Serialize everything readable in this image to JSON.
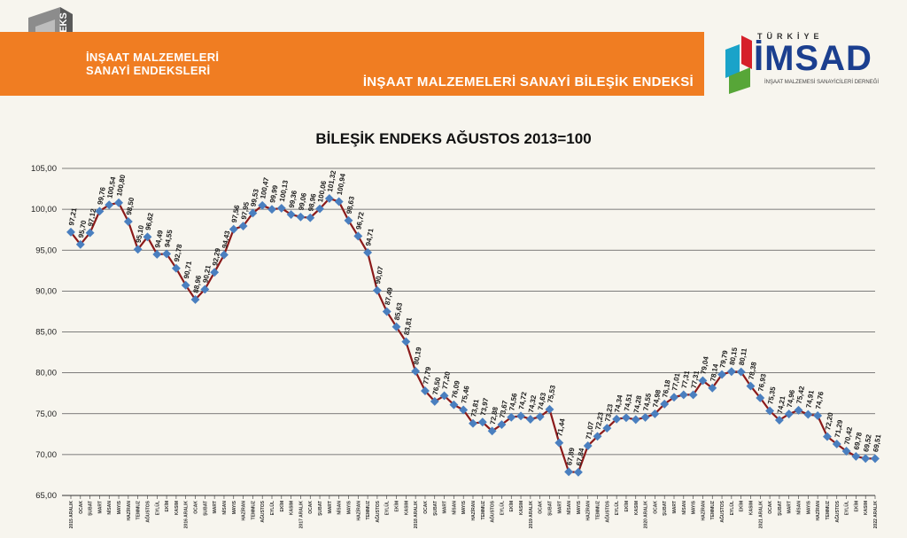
{
  "header": {
    "logo_tag": "ENDEKS",
    "title_line1": "İNŞAAT MALZEMELERİ",
    "title_line2": "SANAYİ ENDEKSLERİ",
    "subtitle": "İNŞAAT MALZEMELERİ SANAYİ BİLEŞİK ENDEKSİ"
  },
  "brand": {
    "top": "TÜRKİYE",
    "name": "İMSAD",
    "tagline": "İNŞAAT MALZEMESİ SANAYİCİLERİ DERNEĞİ",
    "colors": {
      "orange": "#f07d22",
      "navy": "#1b3f8f",
      "red": "#d6202a",
      "green": "#57a638",
      "teal": "#1aa3c9"
    }
  },
  "chart_data": {
    "type": "line",
    "title": "BİLEŞİK ENDEKS AĞUSTOS 2013=100",
    "ylim": [
      65,
      105
    ],
    "yticks": [
      "65,00",
      "70,00",
      "75,00",
      "80,00",
      "85,00",
      "90,00",
      "95,00",
      "100,00",
      "105,00"
    ],
    "grid": true,
    "line_color": "#8b1a1a",
    "marker_color": "#4a7fbf",
    "values": [
      97.21,
      95.7,
      97.12,
      99.76,
      100.54,
      100.8,
      98.5,
      95.1,
      96.62,
      94.49,
      94.55,
      92.78,
      90.71,
      88.96,
      90.21,
      92.29,
      94.43,
      97.56,
      97.95,
      99.53,
      100.47,
      99.99,
      100.13,
      99.36,
      99.06,
      98.96,
      100.06,
      101.32,
      100.94,
      98.63,
      96.72,
      94.71,
      90.07,
      87.49,
      85.63,
      83.81,
      80.19,
      77.79,
      76.5,
      77.2,
      76.09,
      75.46,
      73.81,
      73.97,
      72.88,
      73.67,
      74.56,
      74.72,
      74.32,
      74.63,
      75.53,
      71.44,
      67.89,
      67.84,
      71.07,
      72.23,
      73.23,
      74.34,
      74.51,
      74.28,
      74.55,
      74.98,
      76.18,
      77.01,
      77.31,
      77.31,
      79.04,
      78.14,
      79.79,
      80.15,
      80.11,
      78.38,
      76.93,
      75.35,
      74.21,
      74.96,
      75.42,
      74.91,
      74.76,
      72.2,
      71.29,
      70.42,
      69.78,
      69.52,
      69.51
    ],
    "point_labels": [
      "97,21",
      "95,70",
      "97,12",
      "99,76",
      "100,54",
      "100,80",
      "98,50",
      "95,10",
      "96,62",
      "94,49",
      "94,55",
      "92,78",
      "90,71",
      "88,96",
      "90,21",
      "92,29",
      "94,43",
      "97,56",
      "97,95",
      "99,53",
      "100,47",
      "99,99",
      "100,13",
      "99,36",
      "99,06",
      "98,96",
      "100,06",
      "101,32",
      "100,94",
      "98,63",
      "96,72",
      "94,71",
      "90,07",
      "87,49",
      "85,63",
      "83,81",
      "80,19",
      "77,79",
      "76,50",
      "77,20",
      "76,09",
      "75,46",
      "73,81",
      "73,97",
      "72,88",
      "73,67",
      "74,56",
      "74,72",
      "74,32",
      "74,63",
      "75,53",
      "71,44",
      "67,89",
      "67,84",
      "71,07",
      "72,23",
      "73,23",
      "74,34",
      "74,51",
      "74,28",
      "74,55",
      "74,98",
      "76,18",
      "77,01",
      "77,31",
      "77,31",
      "79,04",
      "78,14",
      "79,79",
      "80,15",
      "80,11",
      "78,38",
      "76,93",
      "75,35",
      "74,21",
      "74,96",
      "75,42",
      "74,91",
      "74,76",
      "72,20",
      "71,29",
      "70,42",
      "69,78",
      "69,52",
      "69,51"
    ],
    "categories": [
      "2015 ARALIK",
      "OCAK",
      "ŞUBAT",
      "MART",
      "NİSAN",
      "MAYIS",
      "HAZİRAN",
      "TEMMUZ",
      "AĞUSTOS",
      "EYLÜL",
      "EKİM",
      "KASIM",
      "2016 ARALIK",
      "OCAK",
      "ŞUBAT",
      "MART",
      "NİSAN",
      "MAYIS",
      "HAZİRAN",
      "TEMMUZ",
      "AĞUSTOS",
      "EYLÜL",
      "EKİM",
      "KASIM",
      "2017 ARALIK",
      "OCAK",
      "ŞUBAT",
      "MART",
      "NİSAN",
      "MAYIS",
      "HAZİRAN",
      "TEMMUZ",
      "AĞUSTOS",
      "EYLÜL",
      "EKİM",
      "KASIM",
      "2018 ARALIK",
      "OCAK",
      "ŞUBAT",
      "MART",
      "NİSAN",
      "MAYIS",
      "HAZİRAN",
      "TEMMUZ",
      "AĞUSTOS",
      "EYLÜL",
      "EKİM",
      "KASIM",
      "2019 ARALIK",
      "OCAK",
      "ŞUBAT",
      "MART",
      "NİSAN",
      "MAYIS",
      "HAZİRAN",
      "TEMMUZ",
      "AĞUSTOS",
      "EYLÜL",
      "EKİM",
      "KASIM",
      "2020 ARALIK",
      "OCAK",
      "ŞUBAT",
      "MART",
      "NİSAN",
      "MAYIS",
      "HAZİRAN",
      "TEMMUZ",
      "AĞUSTOS",
      "EYLÜL",
      "EKİM",
      "KASIM",
      "2021 ARALIK",
      "OCAK",
      "ŞUBAT",
      "MART",
      "NİSAN",
      "MAYIS",
      "HAZİRAN",
      "TEMMUZ",
      "AĞUSTOS",
      "EYLÜL",
      "EKİM",
      "KASIM",
      "2022 ARALIK"
    ]
  }
}
